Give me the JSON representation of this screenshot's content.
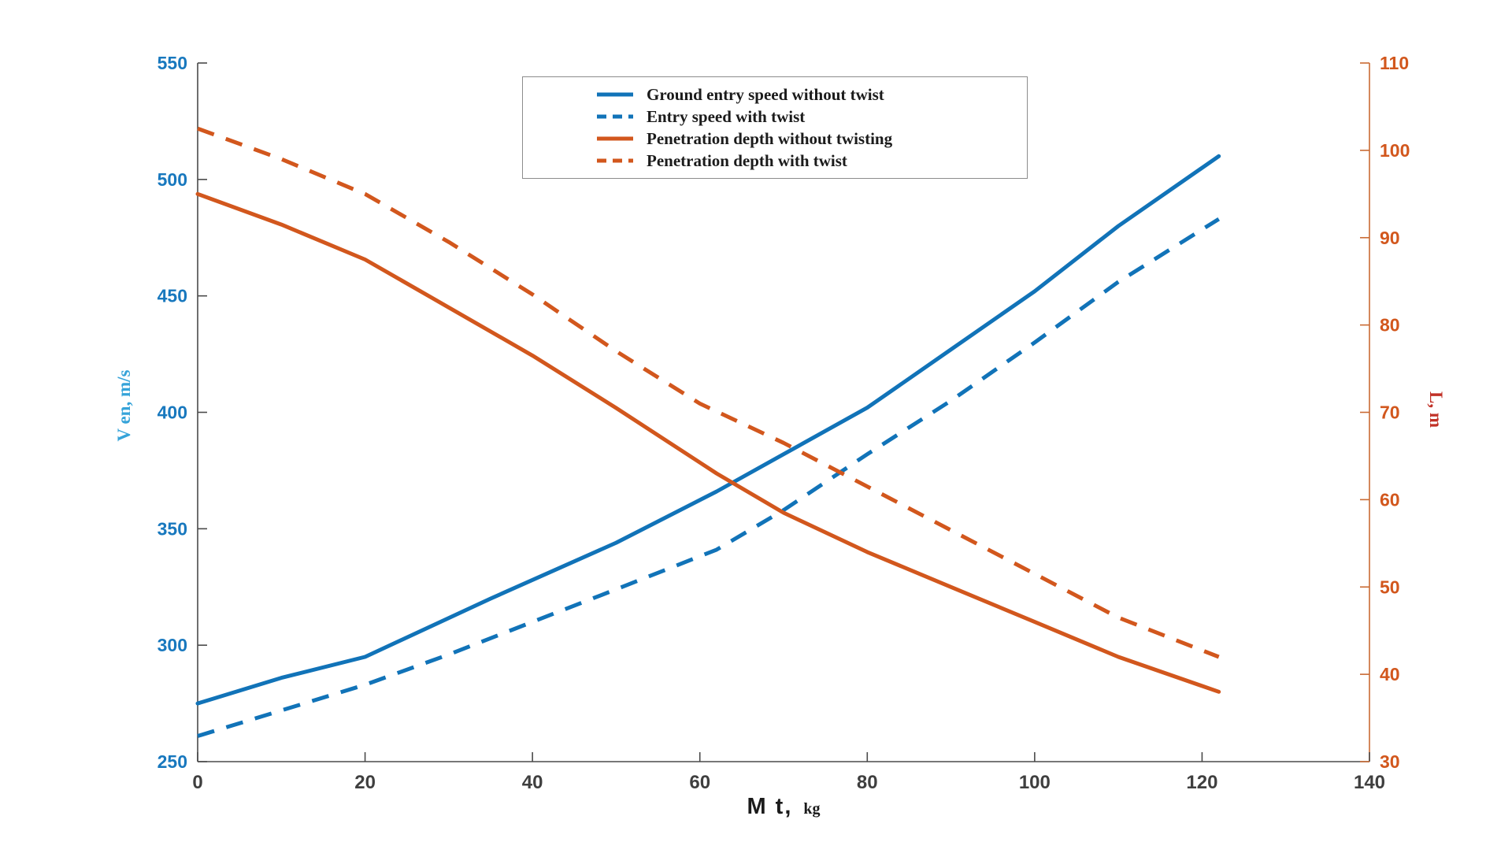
{
  "colors": {
    "series_blue": "#1173b8",
    "series_orange": "#d2571d",
    "left_tick": "#1878be",
    "right_tick": "#d2571d",
    "x_tick": "#3f3f3f",
    "axis_line_left": "#4a4a4a",
    "axis_line_bottom": "#4a4a4a",
    "axis_line_right": "#c96a33",
    "left_axis_label": "#35a3d9",
    "right_axis_label": "#c13127"
  },
  "axes": {
    "x": {
      "label_main": "M t,",
      "label_unit": "kg"
    },
    "y_left": {
      "label": "V en, m/s"
    },
    "y_right": {
      "label": "L, m"
    }
  },
  "chart_data": {
    "type": "line",
    "title": "",
    "xlabel": "M t, kg",
    "ylabel_left": "V en, m/s",
    "ylabel_right": "L, m",
    "x_range": [
      0,
      140
    ],
    "y_left_range": [
      250,
      550
    ],
    "y_right_range": [
      30,
      110
    ],
    "x_ticks": [
      0,
      20,
      40,
      60,
      80,
      100,
      120,
      140
    ],
    "y_left_ticks": [
      250,
      300,
      350,
      400,
      450,
      500,
      550
    ],
    "y_right_ticks": [
      30,
      40,
      50,
      60,
      70,
      80,
      90,
      100,
      110
    ],
    "grid": false,
    "legend_position": "top-center",
    "series": [
      {
        "name": "Ground entry speed without twist",
        "axis": "left",
        "style": "solid",
        "color": "#1173b8",
        "x": [
          0,
          10,
          20,
          35,
          50,
          62,
          70,
          80,
          90,
          100,
          110,
          122
        ],
        "y": [
          275,
          286,
          295,
          320,
          344,
          366,
          382,
          402,
          427,
          452,
          480,
          510
        ]
      },
      {
        "name": "Entry speed with twist",
        "axis": "left",
        "style": "dashed",
        "color": "#1173b8",
        "x": [
          0,
          10,
          20,
          30,
          40,
          50,
          62,
          70,
          80,
          90,
          100,
          110,
          122
        ],
        "y": [
          261,
          272,
          283,
          296,
          310,
          324,
          341,
          358,
          382,
          405,
          430,
          456,
          483
        ]
      },
      {
        "name": "Penetration depth without twisting",
        "axis": "right",
        "style": "solid",
        "color": "#d2571d",
        "x": [
          0,
          10,
          20,
          30,
          40,
          50,
          62,
          70,
          80,
          90,
          100,
          110,
          122
        ],
        "y": [
          95,
          91.5,
          87.5,
          82,
          76.5,
          70.5,
          63,
          58.5,
          54,
          50,
          46,
          42,
          38
        ]
      },
      {
        "name": "Penetration depth with twist",
        "axis": "right",
        "style": "dashed",
        "color": "#d2571d",
        "x": [
          0,
          10,
          20,
          30,
          40,
          50,
          60,
          70,
          80,
          90,
          100,
          110,
          122
        ],
        "y": [
          102.5,
          99,
          95,
          89.5,
          83.5,
          77,
          71,
          66.5,
          61.5,
          56.5,
          51.5,
          46.5,
          42
        ]
      }
    ]
  }
}
